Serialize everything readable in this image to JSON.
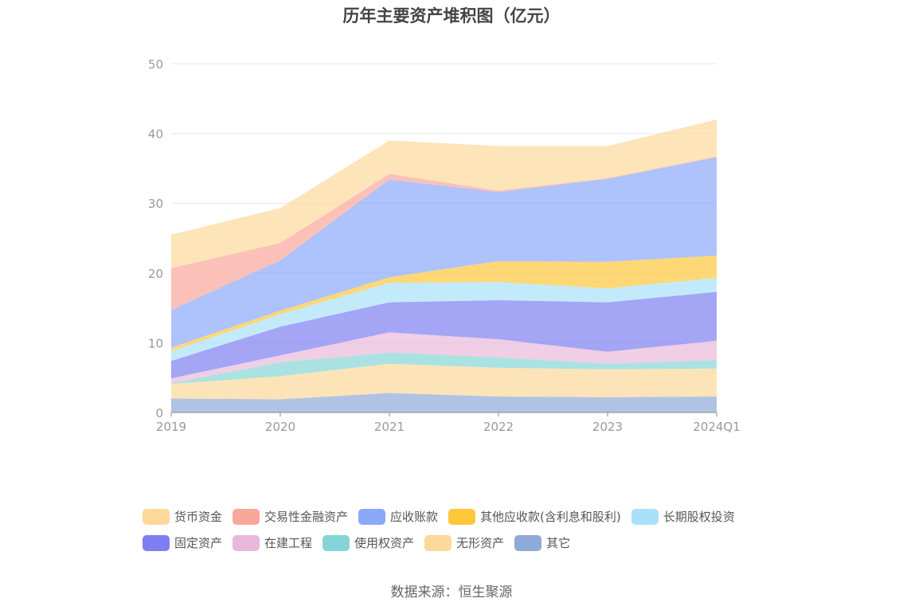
{
  "chart_data": {
    "type": "area",
    "title": "历年主要资产堆积图（亿元）",
    "source": "数据来源：恒生聚源",
    "xlabel": "",
    "ylabel": "",
    "ylim": [
      0,
      50
    ],
    "yticks": [
      "0",
      "10",
      "20",
      "30",
      "40",
      "50"
    ],
    "grid": true,
    "legend_position": "bottom",
    "stacked": true,
    "categories": [
      "2019",
      "2020",
      "2021",
      "2022",
      "2023",
      "2024Q1"
    ],
    "series": [
      {
        "name": "其它",
        "color": "#8eaad8",
        "values": [
          2.0,
          1.9,
          2.8,
          2.3,
          2.2,
          2.3
        ]
      },
      {
        "name": "无形资产",
        "color": "#fcd89a",
        "values": [
          2.1,
          3.3,
          4.2,
          4.1,
          4.0,
          4.0
        ]
      },
      {
        "name": "使用权资产",
        "color": "#86d5d6",
        "values": [
          0.1,
          2.0,
          1.6,
          1.5,
          0.8,
          1.2
        ]
      },
      {
        "name": "在建工程",
        "color": "#e8b9dc",
        "values": [
          0.7,
          1.0,
          2.9,
          2.6,
          1.7,
          2.8
        ]
      },
      {
        "name": "固定资产",
        "color": "#7d7ff1",
        "values": [
          2.5,
          4.1,
          4.3,
          5.6,
          7.1,
          7.0
        ]
      },
      {
        "name": "长期股权投资",
        "color": "#a9e1fa",
        "values": [
          1.4,
          1.8,
          2.8,
          2.6,
          2.0,
          2.0
        ]
      },
      {
        "name": "其他应收款(含利息和股利)",
        "color": "#fdc83c",
        "values": [
          0.5,
          0.5,
          0.8,
          3.0,
          3.8,
          3.2
        ]
      },
      {
        "name": "应收账款",
        "color": "#8ca8fb",
        "values": [
          5.4,
          7.2,
          14.0,
          9.9,
          11.9,
          14.1
        ]
      },
      {
        "name": "交易性金融资产",
        "color": "#f9a69b",
        "values": [
          6.0,
          2.5,
          0.8,
          0.2,
          0.1,
          0.1
        ]
      },
      {
        "name": "货币资金",
        "color": "#fdd89b",
        "values": [
          4.8,
          5.0,
          4.8,
          6.4,
          4.6,
          5.3
        ]
      }
    ],
    "legend_order": [
      "货币资金",
      "交易性金融资产",
      "应收账款",
      "其他应收款(含利息和股利)",
      "长期股权投资",
      "固定资产",
      "在建工程",
      "使用权资产",
      "无形资产",
      "其它"
    ]
  }
}
